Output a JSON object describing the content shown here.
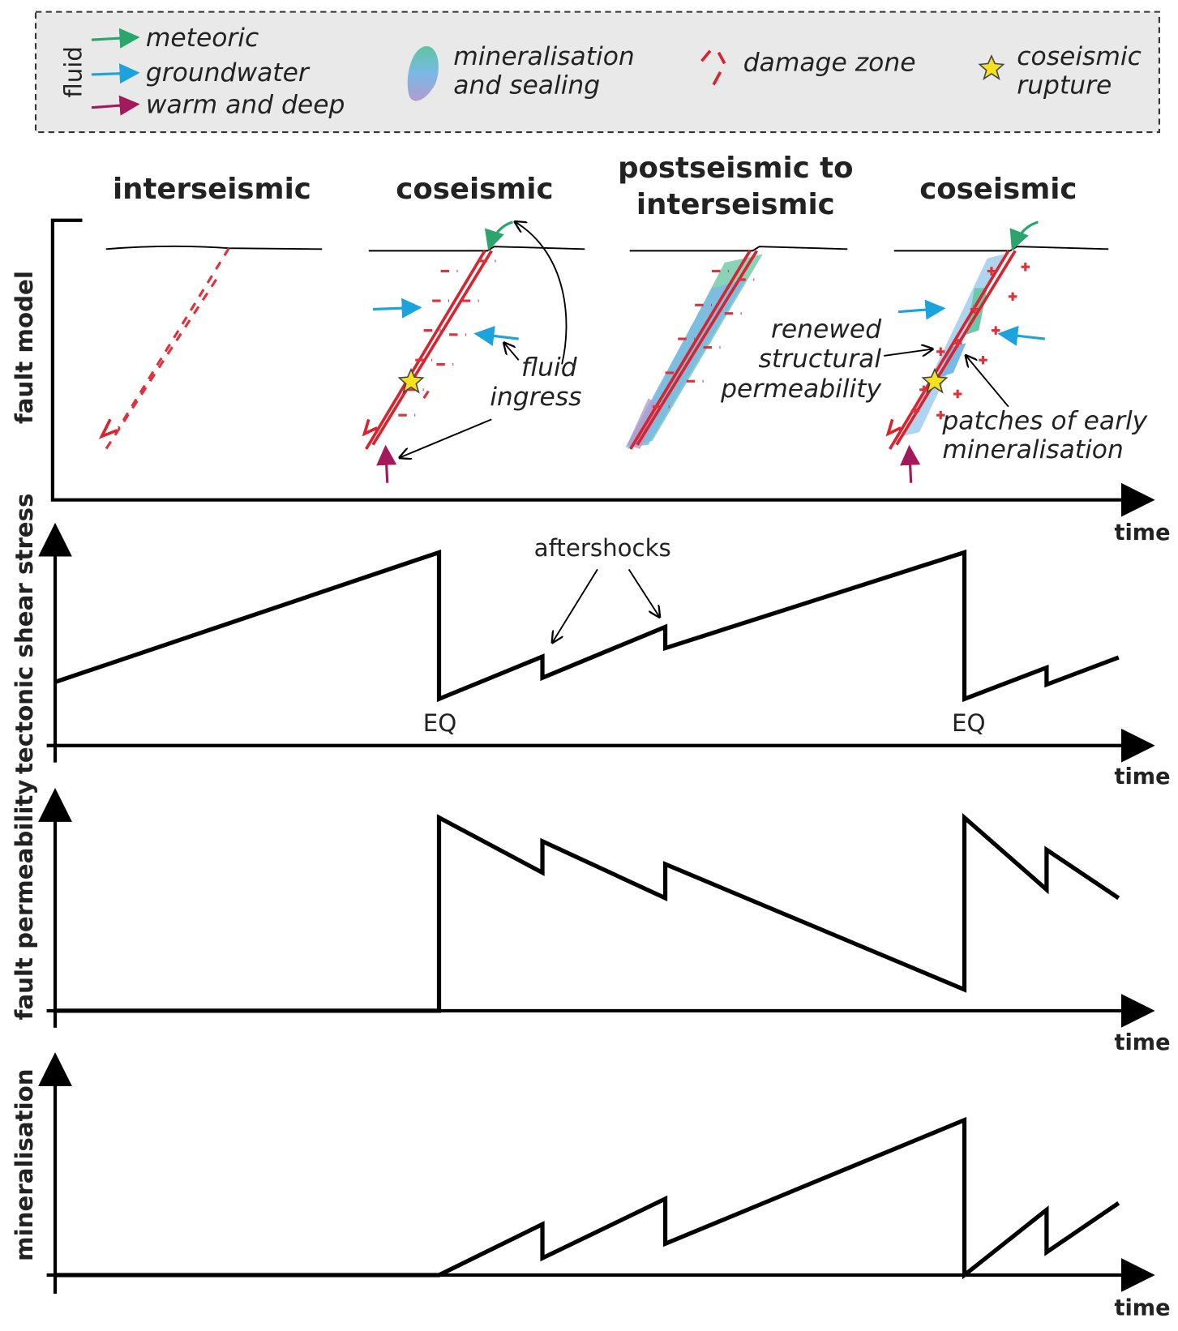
{
  "legend": {
    "fluid_label": "fluid",
    "fluids": [
      "meteoric",
      "groundwater",
      "warm and deep"
    ],
    "mineralisation": [
      "mineralisation",
      "and sealing"
    ],
    "damage": "damage zone",
    "rupture": [
      "coseismic",
      "rupture"
    ]
  },
  "stages": [
    [
      "interseismic"
    ],
    [
      "coseismic"
    ],
    [
      "postseismic to",
      "interseismic"
    ],
    [
      "coseismic"
    ]
  ],
  "annotations": {
    "fluid_ingress": [
      "fluid",
      "ingress"
    ],
    "renewed": [
      "renewed",
      "structural",
      "permeability"
    ],
    "patches": [
      "patches of early",
      "mineralisation"
    ],
    "aftershocks": "aftershocks",
    "eq": [
      "EQ",
      "EQ"
    ]
  },
  "panels": [
    {
      "ylabel": "fault model",
      "xlabel": "time"
    },
    {
      "ylabel": "tectonic shear stress",
      "xlabel": "time"
    },
    {
      "ylabel": "fault permeability",
      "xlabel": "time"
    },
    {
      "ylabel": "mineralisation",
      "xlabel": "time"
    }
  ]
}
